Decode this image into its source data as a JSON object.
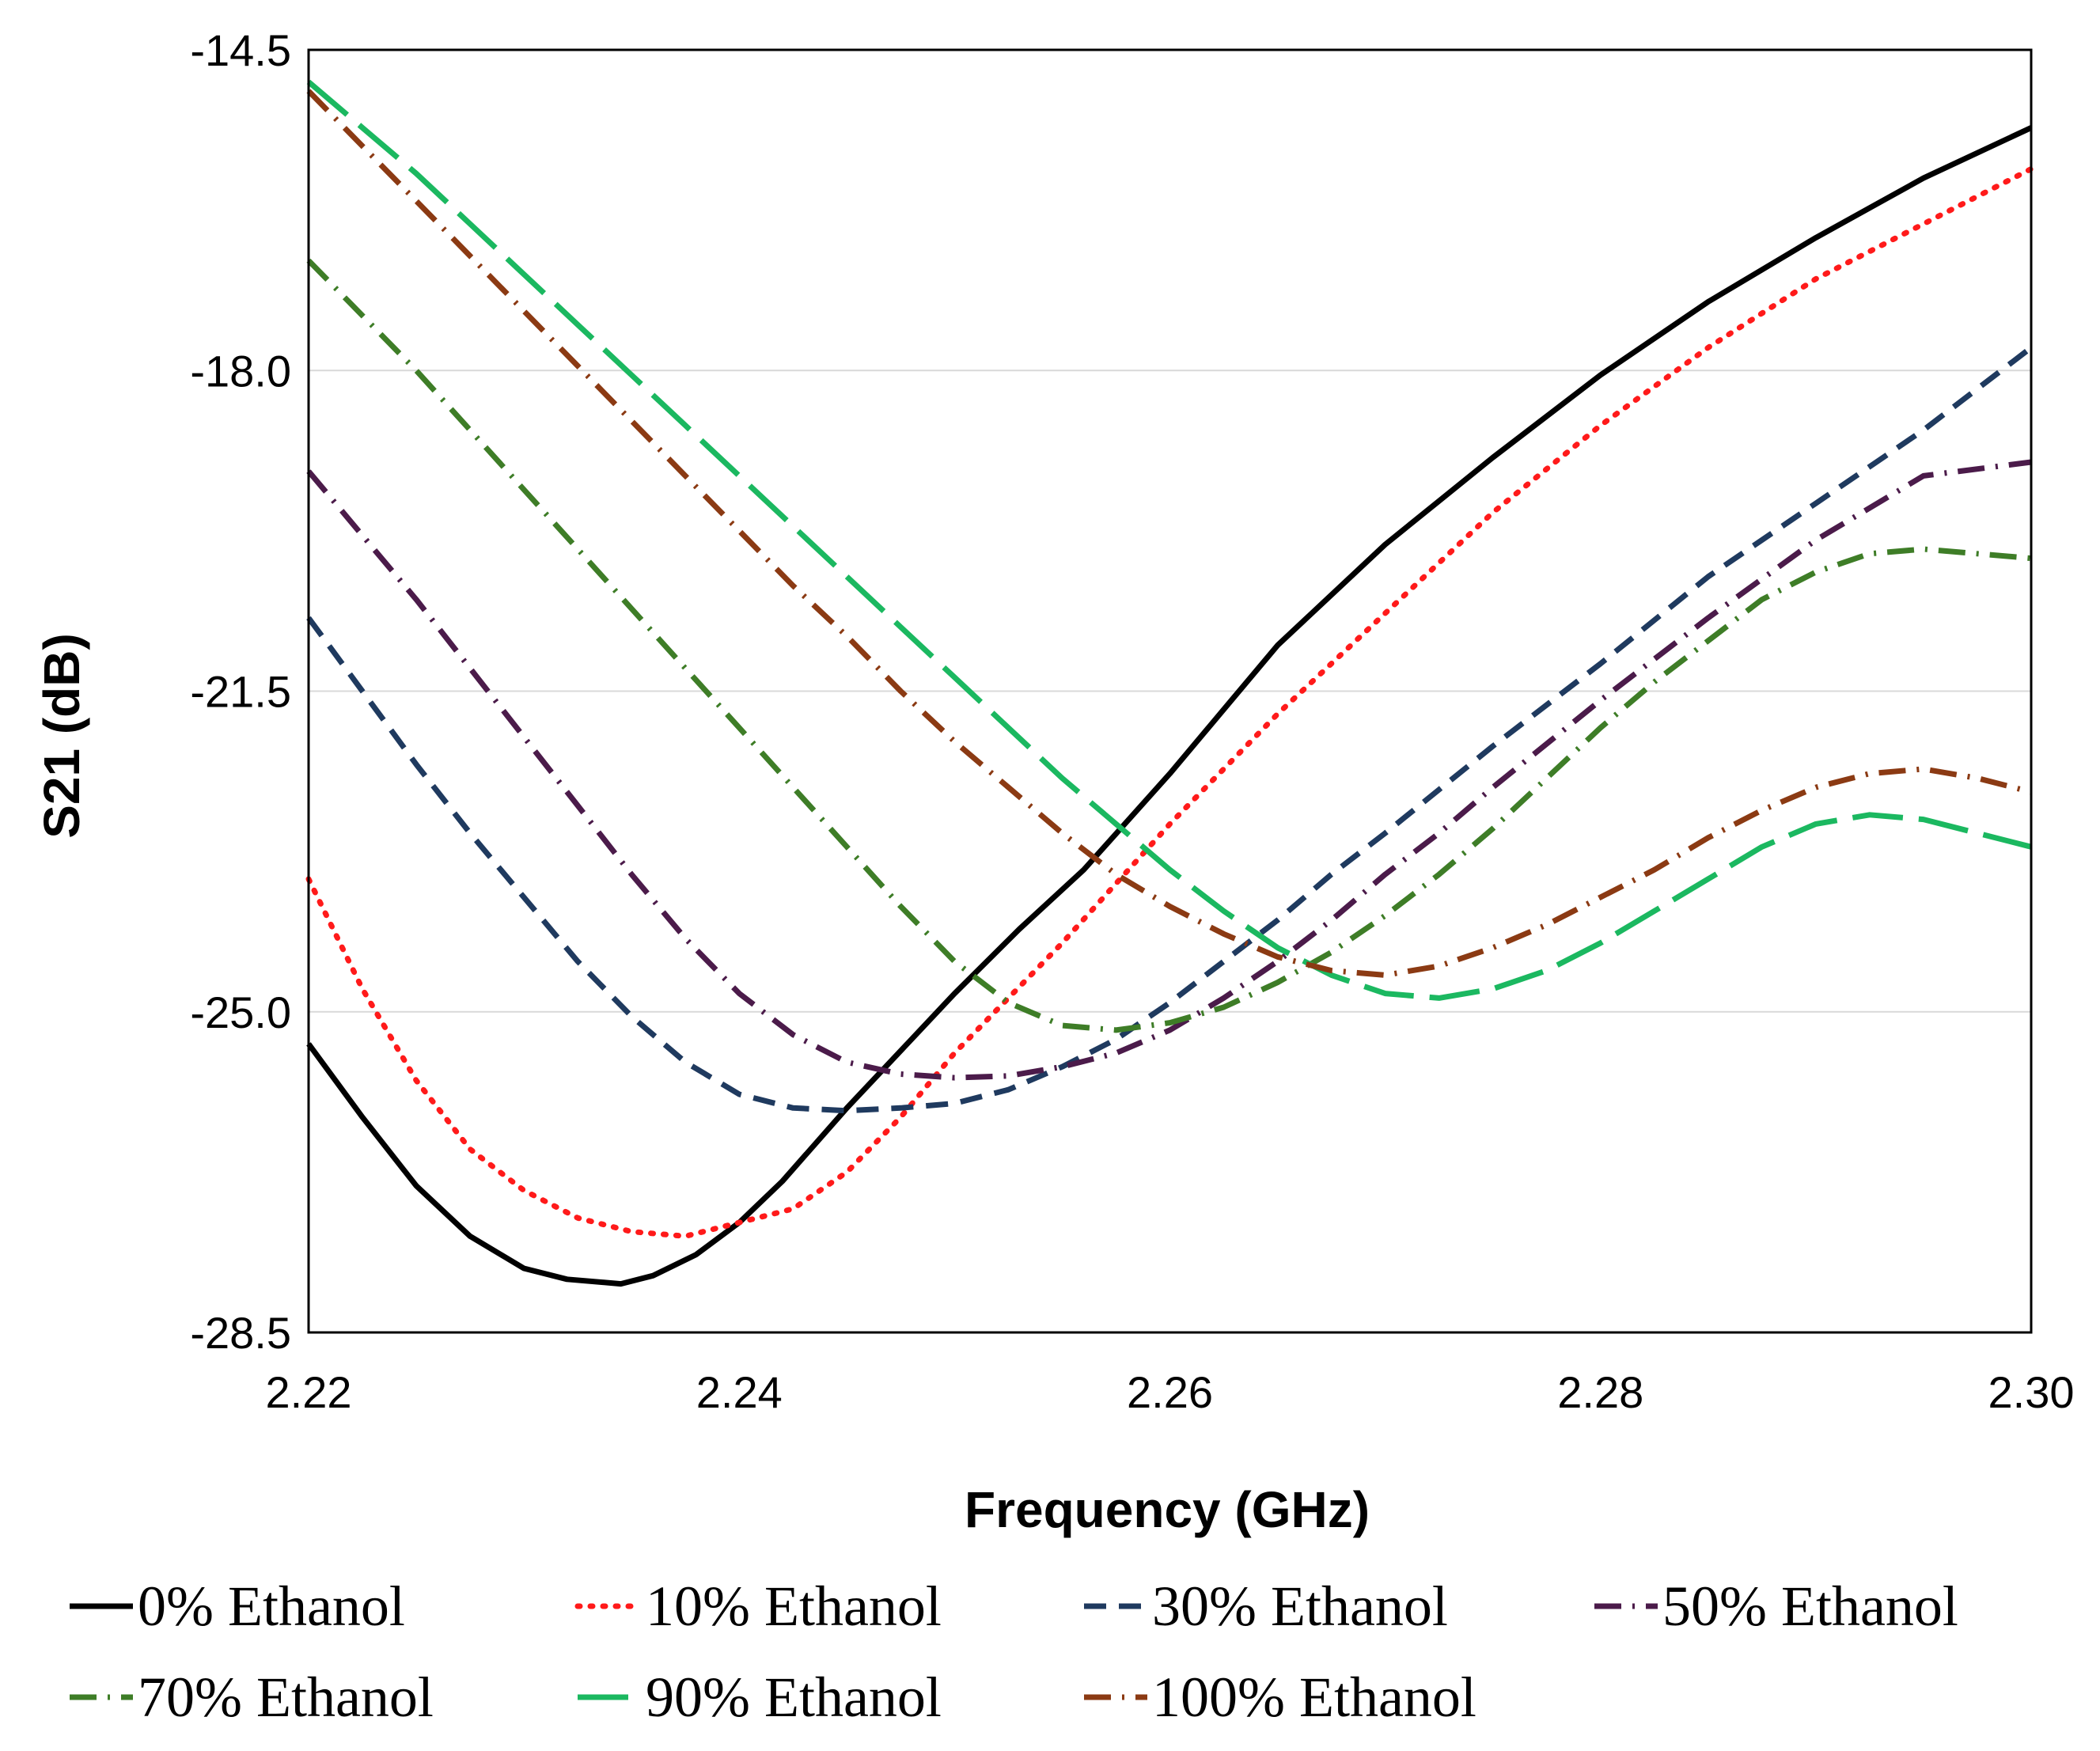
{
  "chart_data": {
    "type": "line",
    "title": "",
    "xlabel": "Frequency (GHz)",
    "ylabel": "S21 (dB)",
    "xlim": [
      2.22,
      2.3
    ],
    "ylim": [
      -28.5,
      -14.5
    ],
    "xticks": [
      2.22,
      2.24,
      2.26,
      2.28,
      2.3
    ],
    "xtick_labels": [
      "2.22",
      "2.24",
      "2.26",
      "2.28",
      "2.30"
    ],
    "yticks": [
      -14.5,
      -18.0,
      -21.5,
      -25.0,
      -28.5
    ],
    "ytick_labels": [
      "-14.5",
      "-18.0",
      "-21.5",
      "-25.0",
      "-28.5"
    ],
    "grid": "horizontal",
    "legend_position": "bottom",
    "series": [
      {
        "name": "0% Ethanol",
        "color": "#000000",
        "dash": "solid",
        "x": [
          2.22,
          2.2225,
          2.225,
          2.2275,
          2.23,
          2.232,
          2.2345,
          2.236,
          2.238,
          2.24,
          2.242,
          2.245,
          2.248,
          2.25,
          2.253,
          2.256,
          2.26,
          2.265,
          2.27,
          2.275,
          2.28,
          2.285,
          2.29,
          2.295,
          2.3
        ],
        "y": [
          -25.35,
          -26.15,
          -26.9,
          -27.45,
          -27.8,
          -27.92,
          -27.97,
          -27.88,
          -27.65,
          -27.3,
          -26.85,
          -26.05,
          -25.3,
          -24.8,
          -24.1,
          -23.45,
          -22.4,
          -21.0,
          -19.9,
          -18.95,
          -18.05,
          -17.25,
          -16.55,
          -15.9,
          -15.35
        ]
      },
      {
        "name": "10% Ethanol",
        "color": "#ff1a1a",
        "dash": "dotted",
        "x": [
          2.22,
          2.2225,
          2.225,
          2.2275,
          2.23,
          2.2325,
          2.235,
          2.2375,
          2.24,
          2.2425,
          2.245,
          2.2475,
          2.25,
          2.255,
          2.26,
          2.265,
          2.27,
          2.275,
          2.28,
          2.285,
          2.29,
          2.295,
          2.3
        ],
        "y": [
          -23.55,
          -24.75,
          -25.75,
          -26.5,
          -26.95,
          -27.25,
          -27.4,
          -27.45,
          -27.3,
          -27.15,
          -26.75,
          -26.15,
          -25.45,
          -24.25,
          -22.95,
          -21.75,
          -20.65,
          -19.55,
          -18.6,
          -17.75,
          -17.0,
          -16.4,
          -15.8
        ]
      },
      {
        "name": "30% Ethanol",
        "color": "#1f3a5f",
        "dash": "dashed",
        "x": [
          2.22,
          2.2225,
          2.225,
          2.2275,
          2.23,
          2.2325,
          2.235,
          2.2375,
          2.24,
          2.2425,
          2.245,
          2.2475,
          2.25,
          2.2525,
          2.255,
          2.2575,
          2.26,
          2.2625,
          2.265,
          2.2675,
          2.27,
          2.275,
          2.28,
          2.285,
          2.29,
          2.295,
          2.3
        ],
        "y": [
          -20.7,
          -21.5,
          -22.3,
          -23.05,
          -23.75,
          -24.45,
          -25.05,
          -25.55,
          -25.9,
          -26.05,
          -26.08,
          -26.05,
          -26.0,
          -25.85,
          -25.6,
          -25.3,
          -24.9,
          -24.45,
          -24.0,
          -23.5,
          -23.05,
          -22.1,
          -21.2,
          -20.25,
          -19.45,
          -18.65,
          -17.75
        ]
      },
      {
        "name": "50% Ethanol",
        "color": "#4b1b4a",
        "dash": "dashdot",
        "x": [
          2.22,
          2.2225,
          2.225,
          2.2275,
          2.23,
          2.2325,
          2.235,
          2.2375,
          2.24,
          2.2425,
          2.245,
          2.2475,
          2.25,
          2.2525,
          2.255,
          2.2575,
          2.26,
          2.2625,
          2.265,
          2.2675,
          2.27,
          2.2725,
          2.275,
          2.28,
          2.285,
          2.29,
          2.295,
          2.3
        ],
        "y": [
          -19.1,
          -19.8,
          -20.5,
          -21.25,
          -22.0,
          -22.75,
          -23.5,
          -24.2,
          -24.8,
          -25.25,
          -25.55,
          -25.68,
          -25.72,
          -25.7,
          -25.6,
          -25.45,
          -25.2,
          -24.85,
          -24.45,
          -24.0,
          -23.5,
          -23.05,
          -22.55,
          -21.6,
          -20.7,
          -19.85,
          -19.15,
          -19.0
        ]
      },
      {
        "name": "70% Ethanol",
        "color": "#3e7d27",
        "dash": "dashdot",
        "x": [
          2.22,
          2.2225,
          2.225,
          2.2275,
          2.23,
          2.2325,
          2.235,
          2.2375,
          2.24,
          2.2425,
          2.245,
          2.2475,
          2.25,
          2.2525,
          2.255,
          2.2575,
          2.26,
          2.2625,
          2.265,
          2.2675,
          2.27,
          2.2725,
          2.275,
          2.2775,
          2.28,
          2.2825,
          2.285,
          2.2875,
          2.29,
          2.2925,
          2.295,
          2.2975,
          2.3
        ],
        "y": [
          -16.8,
          -17.4,
          -18.0,
          -18.65,
          -19.3,
          -19.95,
          -20.6,
          -21.25,
          -21.9,
          -22.55,
          -23.2,
          -23.85,
          -24.45,
          -24.9,
          -25.15,
          -25.2,
          -25.12,
          -24.95,
          -24.68,
          -24.35,
          -23.95,
          -23.5,
          -23.0,
          -22.45,
          -21.9,
          -21.4,
          -20.95,
          -20.5,
          -20.2,
          -20.0,
          -19.95,
          -20.0,
          -20.05
        ]
      },
      {
        "name": "90% Ethanol",
        "color": "#1bb860",
        "dash": "longdash",
        "x": [
          2.22,
          2.2225,
          2.225,
          2.2275,
          2.23,
          2.2325,
          2.235,
          2.2375,
          2.24,
          2.2425,
          2.245,
          2.2475,
          2.25,
          2.2525,
          2.255,
          2.2575,
          2.26,
          2.2625,
          2.265,
          2.2675,
          2.27,
          2.2725,
          2.275,
          2.2775,
          2.28,
          2.2825,
          2.285,
          2.2875,
          2.29,
          2.2925,
          2.295,
          2.2975,
          2.3
        ],
        "y": [
          -14.85,
          -15.35,
          -15.85,
          -16.4,
          -16.95,
          -17.5,
          -18.05,
          -18.6,
          -19.15,
          -19.7,
          -20.25,
          -20.8,
          -21.35,
          -21.9,
          -22.45,
          -22.95,
          -23.45,
          -23.9,
          -24.3,
          -24.6,
          -24.8,
          -24.85,
          -24.75,
          -24.55,
          -24.25,
          -23.9,
          -23.55,
          -23.2,
          -22.95,
          -22.85,
          -22.9,
          -23.05,
          -23.2
        ]
      },
      {
        "name": "100% Ethanol",
        "color": "#8b3a13",
        "dash": "dashdot",
        "x": [
          2.22,
          2.2225,
          2.225,
          2.2275,
          2.23,
          2.2325,
          2.235,
          2.2375,
          2.24,
          2.2425,
          2.245,
          2.2475,
          2.25,
          2.2525,
          2.255,
          2.2575,
          2.26,
          2.2625,
          2.265,
          2.2675,
          2.27,
          2.2725,
          2.275,
          2.2775,
          2.28,
          2.2825,
          2.285,
          2.2875,
          2.29,
          2.2925,
          2.295,
          2.2975,
          2.3
        ],
        "y": [
          -14.95,
          -15.55,
          -16.15,
          -16.75,
          -17.35,
          -17.95,
          -18.55,
          -19.15,
          -19.75,
          -20.35,
          -20.9,
          -21.5,
          -22.05,
          -22.55,
          -23.05,
          -23.5,
          -23.85,
          -24.15,
          -24.4,
          -24.55,
          -24.6,
          -24.5,
          -24.3,
          -24.05,
          -23.75,
          -23.45,
          -23.1,
          -22.8,
          -22.55,
          -22.4,
          -22.35,
          -22.45,
          -22.6
        ]
      }
    ]
  }
}
